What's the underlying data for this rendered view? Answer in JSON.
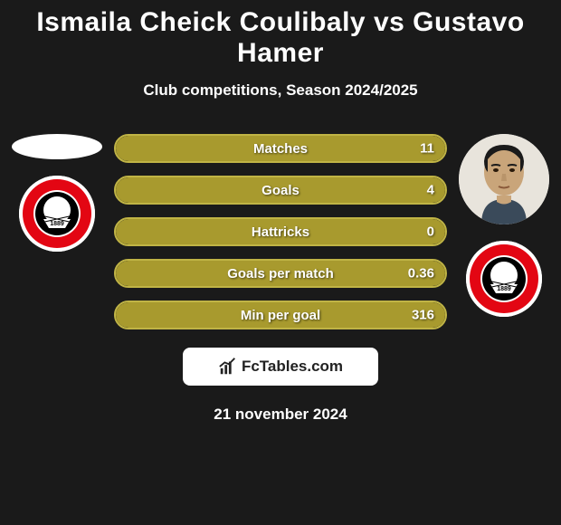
{
  "title": "Ismaila Cheick Coulibaly vs Gustavo Hamer",
  "subtitle": "Club competitions, Season 2024/2025",
  "date": "21 november 2024",
  "brand": "FcTables.com",
  "accent_color": "#a89a2e",
  "border_color": "#c0b445",
  "stats": [
    {
      "label": "Matches",
      "value": "11",
      "fill_pct": 100
    },
    {
      "label": "Goals",
      "value": "4",
      "fill_pct": 100
    },
    {
      "label": "Hattricks",
      "value": "0",
      "fill_pct": 100
    },
    {
      "label": "Goals per match",
      "value": "0.36",
      "fill_pct": 100
    },
    {
      "label": "Min per goal",
      "value": "316",
      "fill_pct": 100
    }
  ],
  "club_badge_year": "1889"
}
